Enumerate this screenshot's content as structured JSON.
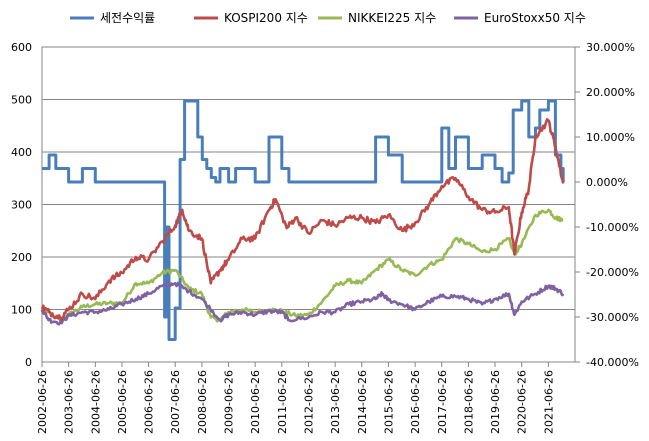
{
  "chart_data": {
    "type": "line",
    "title": "",
    "xlabel": "",
    "ylabel": "",
    "y2label": "",
    "grid": true,
    "legend_position": "top",
    "x_ticks": [
      "2002-06-26",
      "2003-06-26",
      "2004-06-26",
      "2005-06-26",
      "2006-06-26",
      "2007-06-26",
      "2008-06-26",
      "2009-06-26",
      "2010-06-26",
      "2011-06-26",
      "2012-06-26",
      "2013-06-26",
      "2014-06-26",
      "2015-06-26",
      "2016-06-26",
      "2017-06-26",
      "2018-06-26",
      "2019-06-26",
      "2020-06-26",
      "2021-06-26"
    ],
    "y_left": {
      "min": 0,
      "max": 600,
      "ticks": [
        "0",
        "100",
        "200",
        "300",
        "400",
        "500",
        "600"
      ]
    },
    "y_right": {
      "min": -40,
      "max": 30,
      "ticks": [
        "30.000%",
        "20.000%",
        "10.000%",
        "0.000%",
        "-10.000%",
        "-20.000%",
        "-30.000%",
        "-40.000%"
      ]
    },
    "series": [
      {
        "name": "세전수익률",
        "axis": "right",
        "color": "#4a7ebb",
        "x": [
          "2002-06-26",
          "2002-10-01",
          "2003-01-01",
          "2003-06-26",
          "2004-01-01",
          "2004-06-26",
          "2005-01-01",
          "2005-06-26",
          "2006-01-01",
          "2006-06-26",
          "2006-10-01",
          "2006-12-01",
          "2007-01-10",
          "2007-02-01",
          "2007-03-01",
          "2007-04-01",
          "2007-06-26",
          "2007-09-01",
          "2007-11-01",
          "2008-01-01",
          "2008-03-01",
          "2008-05-01",
          "2008-07-01",
          "2008-09-01",
          "2008-11-01",
          "2009-01-01",
          "2009-03-01",
          "2009-06-26",
          "2009-10-01",
          "2010-01-01",
          "2010-06-26",
          "2011-01-01",
          "2011-06-26",
          "2011-10-01",
          "2012-01-01",
          "2012-06-26",
          "2013-01-01",
          "2013-06-26",
          "2014-01-01",
          "2014-06-26",
          "2015-01-01",
          "2015-06-26",
          "2016-01-01",
          "2016-06-26",
          "2017-01-01",
          "2017-06-26",
          "2017-10-01",
          "2018-01-01",
          "2018-06-26",
          "2019-01-01",
          "2019-06-26",
          "2019-10-01",
          "2020-01-01",
          "2020-03-01",
          "2020-06-26",
          "2020-10-01",
          "2021-01-01",
          "2021-03-01",
          "2021-06-26",
          "2021-10-01",
          "2021-12-15",
          "2022-01-15"
        ],
        "values": [
          3.0,
          6.0,
          3.0,
          0.0,
          3.0,
          0.0,
          0.0,
          0.0,
          0.0,
          0.0,
          0.0,
          0.0,
          0.0,
          -30.0,
          -10.0,
          -35.0,
          -28.0,
          5.0,
          18.0,
          18.0,
          18.0,
          10.0,
          5.0,
          3.0,
          1.0,
          0.0,
          3.0,
          0.0,
          3.0,
          3.0,
          0.0,
          10.0,
          3.0,
          0.0,
          0.0,
          0.0,
          0.0,
          0.0,
          0.0,
          0.0,
          10.0,
          6.0,
          0.0,
          0.0,
          0.0,
          12.0,
          3.0,
          10.0,
          3.0,
          6.0,
          3.0,
          0.0,
          2.0,
          16.0,
          18.0,
          10.0,
          12.0,
          16.0,
          18.0,
          6.0,
          3.0,
          0.0
        ]
      },
      {
        "name": "KOSPI200 지수",
        "axis": "left",
        "color": "#be4b48",
        "x": [
          "2002-06-26",
          "2002-10-01",
          "2003-03-01",
          "2003-06-26",
          "2004-01-01",
          "2004-06-26",
          "2005-01-01",
          "2005-06-26",
          "2006-01-01",
          "2006-06-26",
          "2007-01-01",
          "2007-06-26",
          "2007-10-01",
          "2008-01-01",
          "2008-06-26",
          "2008-10-25",
          "2009-03-01",
          "2009-06-26",
          "2010-01-01",
          "2010-06-26",
          "2011-01-01",
          "2011-04-01",
          "2011-09-01",
          "2012-01-01",
          "2012-06-26",
          "2013-01-01",
          "2013-06-26",
          "2014-01-01",
          "2014-06-26",
          "2015-01-01",
          "2015-06-26",
          "2016-01-01",
          "2016-06-26",
          "2017-01-01",
          "2017-06-26",
          "2018-01-01",
          "2018-06-26",
          "2019-01-01",
          "2019-06-26",
          "2020-01-01",
          "2020-03-19",
          "2020-06-26",
          "2020-10-01",
          "2021-01-01",
          "2021-06-26",
          "2021-10-01",
          "2022-01-15"
        ],
        "values": [
          105,
          95,
          85,
          100,
          130,
          120,
          155,
          170,
          200,
          195,
          230,
          260,
          290,
          250,
          235,
          150,
          175,
          195,
          235,
          235,
          290,
          310,
          255,
          275,
          245,
          270,
          260,
          275,
          275,
          265,
          280,
          250,
          265,
          300,
          335,
          350,
          315,
          290,
          285,
          295,
          205,
          285,
          330,
          430,
          460,
          410,
          340
        ]
      },
      {
        "name": "NIKKEI225 지수",
        "axis": "left",
        "color": "#98b954",
        "x": [
          "2002-06-26",
          "2003-03-01",
          "2003-06-26",
          "2004-01-01",
          "2004-06-26",
          "2005-01-01",
          "2005-06-26",
          "2006-01-01",
          "2006-06-26",
          "2007-01-01",
          "2007-06-26",
          "2008-01-01",
          "2008-06-26",
          "2008-10-25",
          "2009-03-01",
          "2009-06-26",
          "2010-01-01",
          "2010-06-26",
          "2011-01-01",
          "2011-06-26",
          "2012-01-01",
          "2012-06-26",
          "2013-01-01",
          "2013-06-26",
          "2014-01-01",
          "2014-06-26",
          "2015-01-01",
          "2015-06-26",
          "2016-01-01",
          "2016-06-26",
          "2017-01-01",
          "2017-06-26",
          "2018-01-01",
          "2018-06-26",
          "2019-01-01",
          "2019-06-26",
          "2020-01-01",
          "2020-03-19",
          "2020-06-26",
          "2021-01-01",
          "2021-06-26",
          "2021-10-01",
          "2022-01-15"
        ],
        "values": [
          100,
          80,
          90,
          105,
          110,
          112,
          112,
          150,
          150,
          170,
          175,
          140,
          130,
          85,
          80,
          95,
          100,
          95,
          100,
          97,
          88,
          90,
          115,
          145,
          155,
          150,
          175,
          195,
          175,
          165,
          185,
          195,
          235,
          225,
          210,
          215,
          235,
          205,
          225,
          280,
          290,
          275,
          270
        ]
      },
      {
        "name": "EuroStoxx50 지수",
        "axis": "left",
        "color": "#7e62a1",
        "x": [
          "2002-06-26",
          "2002-10-01",
          "2003-03-01",
          "2003-06-26",
          "2004-01-01",
          "2004-06-26",
          "2005-01-01",
          "2005-06-26",
          "2006-01-01",
          "2006-06-26",
          "2007-01-01",
          "2007-06-26",
          "2008-01-01",
          "2008-06-26",
          "2009-03-01",
          "2009-06-26",
          "2010-01-01",
          "2010-06-26",
          "2011-01-01",
          "2011-06-26",
          "2011-10-01",
          "2012-06-26",
          "2013-01-01",
          "2013-06-26",
          "2014-01-01",
          "2014-06-26",
          "2015-01-01",
          "2015-04-01",
          "2015-06-26",
          "2016-01-01",
          "2016-06-26",
          "2017-01-01",
          "2017-06-26",
          "2018-01-01",
          "2018-06-26",
          "2019-01-01",
          "2019-06-26",
          "2020-01-01",
          "2020-03-19",
          "2020-06-26",
          "2021-01-01",
          "2021-06-26",
          "2021-10-01",
          "2022-01-15"
        ],
        "values": [
          100,
          80,
          75,
          88,
          95,
          95,
          100,
          110,
          120,
          130,
          145,
          150,
          135,
          120,
          80,
          90,
          95,
          90,
          97,
          95,
          80,
          85,
          95,
          95,
          110,
          115,
          120,
          130,
          118,
          110,
          100,
          115,
          125,
          125,
          120,
          110,
          120,
          130,
          90,
          115,
          130,
          145,
          140,
          130
        ]
      }
    ]
  }
}
